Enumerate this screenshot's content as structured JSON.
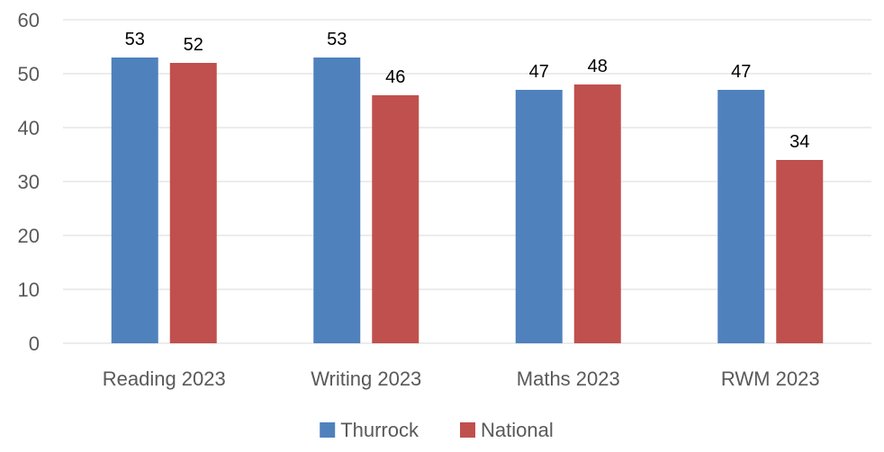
{
  "chart_data": {
    "type": "bar",
    "categories": [
      "Reading 2023",
      "Writing 2023",
      "Maths 2023",
      "RWM 2023"
    ],
    "series": [
      {
        "name": "Thurrock",
        "color": "#4f81bd",
        "values": [
          53,
          53,
          47,
          47
        ]
      },
      {
        "name": "National",
        "color": "#c0504d",
        "values": [
          52,
          46,
          48,
          34
        ]
      }
    ],
    "yticks": [
      0,
      10,
      20,
      30,
      40,
      50,
      60
    ],
    "ylim": [
      0,
      60
    ],
    "grid": true,
    "data_labels": true,
    "legend_position": "bottom",
    "gridline_color": "#d9d9d9",
    "text_color": "#000000",
    "tick_label_color": "#595959"
  }
}
